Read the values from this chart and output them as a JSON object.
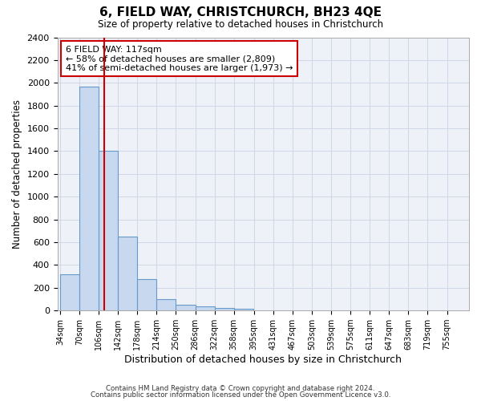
{
  "title": "6, FIELD WAY, CHRISTCHURCH, BH23 4QE",
  "subtitle": "Size of property relative to detached houses in Christchurch",
  "xlabel": "Distribution of detached houses by size in Christchurch",
  "ylabel": "Number of detached properties",
  "footnote1": "Contains HM Land Registry data © Crown copyright and database right 2024.",
  "footnote2": "Contains public sector information licensed under the Open Government Licence v3.0.",
  "bar_edges": [
    34,
    70,
    106,
    142,
    178,
    214,
    250,
    286,
    322,
    358,
    395,
    431,
    467,
    503,
    539,
    575,
    611,
    647,
    683,
    719,
    755
  ],
  "bar_heights": [
    320,
    1970,
    1400,
    650,
    275,
    100,
    50,
    40,
    25,
    15,
    0,
    0,
    0,
    0,
    0,
    0,
    0,
    0,
    0,
    0
  ],
  "bar_color": "#c8d8ee",
  "bar_edgecolor": "#6699cc",
  "vline_x": 117,
  "vline_color": "#cc0000",
  "ylim": [
    0,
    2400
  ],
  "yticks": [
    0,
    200,
    400,
    600,
    800,
    1000,
    1200,
    1400,
    1600,
    1800,
    2000,
    2200,
    2400
  ],
  "annotation_line1": "6 FIELD WAY: 117sqm",
  "annotation_line2": "← 58% of detached houses are smaller (2,809)",
  "annotation_line3": "41% of semi-detached houses are larger (1,973) →",
  "annotation_box_color": "#cc0000",
  "grid_color": "#d0d8e8",
  "background_color": "#ffffff",
  "plot_bg_color": "#eef2f8"
}
